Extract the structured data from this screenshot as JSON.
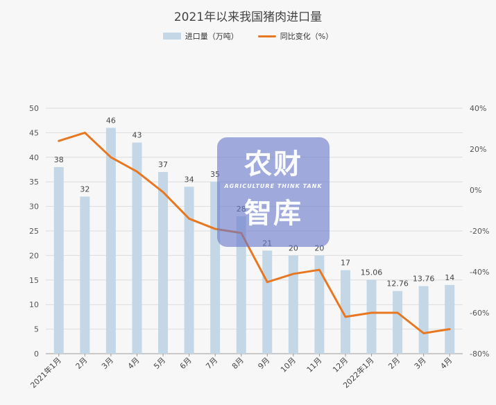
{
  "chart_data": {
    "type": "bar",
    "title": "2021年以来我国猪肉进口量",
    "categories": [
      "2021年1月",
      "2月",
      "3月",
      "4月",
      "5月",
      "6月",
      "7月",
      "8月",
      "9月",
      "10月",
      "11月",
      "12月",
      "2022年1月",
      "2月",
      "3月",
      "4月"
    ],
    "series": [
      {
        "name": "进口量（万吨）",
        "type": "bar",
        "axis": "left",
        "color": "#c3d7e6",
        "values": [
          38,
          32,
          46,
          43,
          37,
          34,
          35,
          28,
          21,
          20,
          20,
          17,
          15.06,
          12.76,
          13.76,
          14
        ],
        "labels": [
          "38",
          "32",
          "46",
          "43",
          "37",
          "34",
          "35",
          "28",
          "21",
          "20",
          "20",
          "17",
          "15.06",
          "12.76",
          "13.76",
          "14"
        ]
      },
      {
        "name": "同比变化（%）",
        "type": "line",
        "axis": "right",
        "color": "#e87722",
        "values": [
          24,
          28,
          16,
          9,
          -1,
          -14,
          -19,
          -21,
          -45,
          -41,
          -39,
          -62,
          -60,
          -60,
          -70,
          -68
        ]
      }
    ],
    "ylim": [
      0,
      50
    ],
    "yticks": [
      "0",
      "5",
      "10",
      "15",
      "20",
      "25",
      "30",
      "35",
      "40",
      "45",
      "50"
    ],
    "y2lim": [
      -80,
      40
    ],
    "y2ticks": [
      "-80%",
      "-60%",
      "-40%",
      "-20%",
      "0%",
      "20%",
      "40%"
    ],
    "legend_position": "top-center",
    "grid": true
  },
  "watermark": {
    "line1": "农财",
    "sub": "AGRICULTURE THINK TANK",
    "line2": "智库"
  }
}
